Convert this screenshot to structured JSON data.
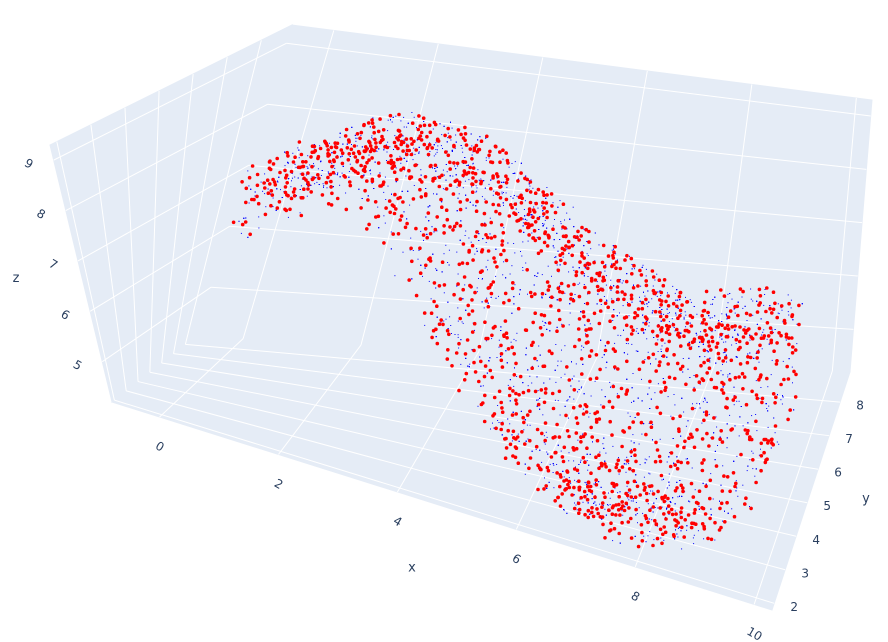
{
  "chart_data": {
    "type": "scatter3d",
    "title": "",
    "scene": {
      "background": "#e5ecf6",
      "grid_color": "#ffffff",
      "grid": true
    },
    "axes": {
      "x": {
        "label": "x",
        "range": [
          -0.8,
          10.3
        ],
        "ticks": [
          0,
          2,
          4,
          6,
          8,
          10
        ]
      },
      "y": {
        "label": "y",
        "range": [
          1.8,
          8.9
        ],
        "ticks": [
          2,
          3,
          4,
          5,
          6,
          7,
          8
        ]
      },
      "z": {
        "label": "z",
        "range": [
          4.2,
          9.3
        ],
        "ticks": [
          5,
          6,
          7,
          8,
          9
        ]
      }
    },
    "series": [
      {
        "color": "#0000ff",
        "marker_size": "tiny",
        "description_count_estimate": 8000,
        "outline_xy": [
          [
            -0.3,
            8.2
          ],
          [
            0.5,
            8.6
          ],
          [
            1.5,
            8.6
          ],
          [
            2.5,
            8.5
          ],
          [
            3.8,
            8.5
          ],
          [
            5,
            8.6
          ],
          [
            6.3,
            8.7
          ],
          [
            7.5,
            8.5
          ],
          [
            8.5,
            8.2
          ],
          [
            9.3,
            7.5
          ],
          [
            9.8,
            6.5
          ],
          [
            10,
            5.5
          ],
          [
            9.7,
            4.2
          ],
          [
            9.0,
            3.0
          ],
          [
            8.3,
            2.3
          ],
          [
            7.5,
            2.0
          ],
          [
            6.8,
            2.2
          ],
          [
            6.0,
            2.6
          ],
          [
            5.3,
            3.2
          ],
          [
            4.6,
            3.9
          ],
          [
            3.8,
            4.6
          ],
          [
            2.8,
            5.4
          ],
          [
            1.8,
            6.0
          ],
          [
            0.8,
            6.3
          ],
          [
            0,
            6.8
          ],
          [
            -0.5,
            7.5
          ]
        ]
      },
      {
        "color": "#ff0000",
        "marker_size": "small",
        "description_count_estimate": 1500
      }
    ]
  }
}
